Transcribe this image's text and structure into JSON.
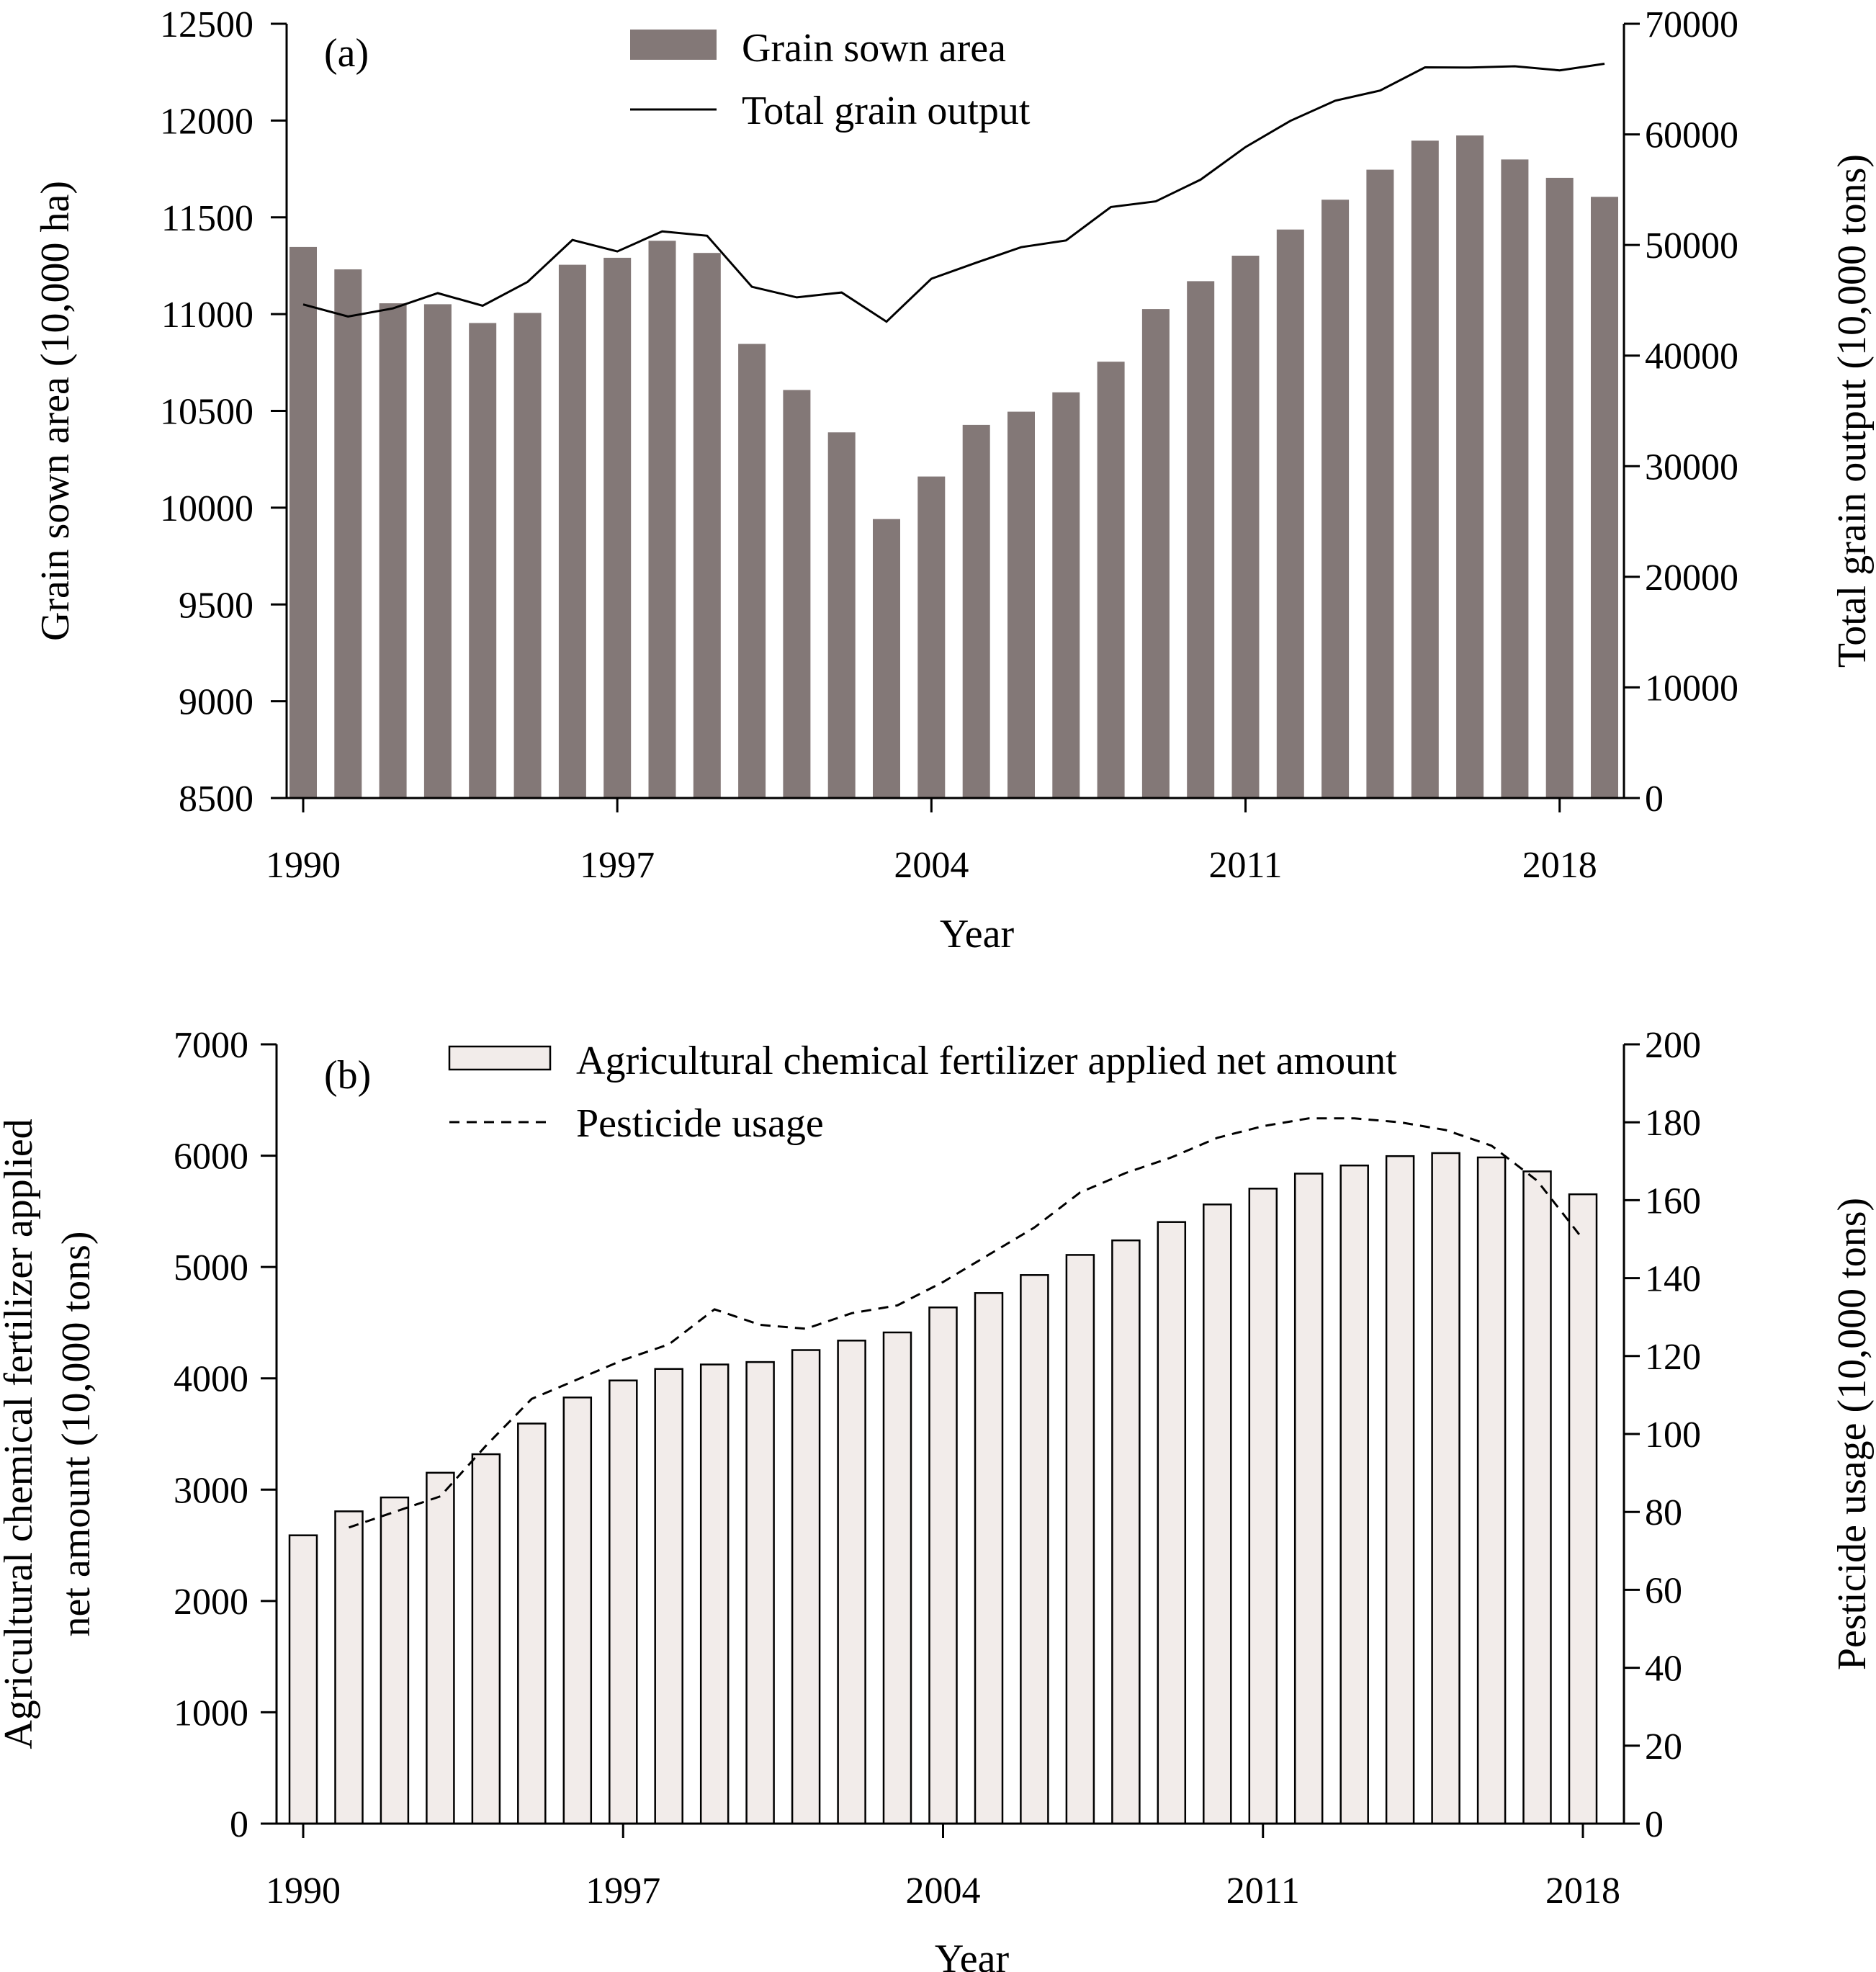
{
  "chart_data": [
    {
      "panel_label": "(a)",
      "type": "bar",
      "categories": [
        1990,
        1991,
        1992,
        1993,
        1994,
        1995,
        1996,
        1997,
        1998,
        1999,
        2000,
        2001,
        2002,
        2003,
        2004,
        2005,
        2006,
        2007,
        2008,
        2009,
        2010,
        2011,
        2012,
        2013,
        2014,
        2015,
        2016,
        2017,
        2018,
        2019
      ],
      "x_ticks": [
        "1990",
        "1997",
        "2004",
        "2011",
        "2018"
      ],
      "xlabel": "Year",
      "ylabel": "Grain sown area (10,000 ha)",
      "ylim": [
        8500,
        12500
      ],
      "y_ticks": [
        "8500",
        "9000",
        "9500",
        "10000",
        "10500",
        "11000",
        "11500",
        "12000",
        "12500"
      ],
      "y2label": "Total grain output (10,000 tons)",
      "y2lim": [
        0,
        70000
      ],
      "y2_ticks": [
        "0",
        "10000",
        "20000",
        "30000",
        "40000",
        "50000",
        "60000",
        "70000"
      ],
      "series": [
        {
          "name": "Grain sown area",
          "kind": "bar",
          "axis": "left",
          "color": "#837877",
          "values": [
            11347,
            11231,
            11056,
            11051,
            10954,
            11006,
            11255,
            11291,
            11379,
            11316,
            10846,
            10608,
            10389,
            9941,
            10161,
            10428,
            10496,
            10596,
            10754,
            11026,
            11170,
            11302,
            11437,
            11591,
            11746,
            11896,
            11923,
            11799,
            11704,
            11606
          ]
        },
        {
          "name": "Total grain output",
          "kind": "line",
          "axis": "right",
          "color": "#000000",
          "values": [
            44624,
            43529,
            44266,
            45649,
            44510,
            46662,
            50454,
            49417,
            51230,
            50839,
            46218,
            45264,
            45706,
            43070,
            46947,
            48402,
            49804,
            50414,
            53434,
            53941,
            55911,
            58849,
            61223,
            63048,
            63965,
            66060,
            66044,
            66161,
            65789,
            66384
          ]
        }
      ],
      "legend_position": "top-center"
    },
    {
      "panel_label": "(b)",
      "type": "bar",
      "categories": [
        1990,
        1991,
        1992,
        1993,
        1994,
        1995,
        1996,
        1997,
        1998,
        1999,
        2000,
        2001,
        2002,
        2003,
        2004,
        2005,
        2006,
        2007,
        2008,
        2009,
        2010,
        2011,
        2012,
        2013,
        2014,
        2015,
        2016,
        2017,
        2018
      ],
      "x_ticks": [
        "1990",
        "1997",
        "2004",
        "2011",
        "2018"
      ],
      "xlabel": "Year",
      "ylabel_lines": [
        "Agricultural chemical fertilizer applied",
        "net amount (10,000 tons)"
      ],
      "ylim": [
        0,
        7000
      ],
      "y_ticks": [
        "0",
        "1000",
        "2000",
        "3000",
        "4000",
        "5000",
        "6000",
        "7000"
      ],
      "y2label": "Pesticide usage (10,000 tons)",
      "y2lim": [
        0,
        200
      ],
      "y2_ticks": [
        "0",
        "20",
        "40",
        "60",
        "80",
        "100",
        "120",
        "140",
        "160",
        "180",
        "200"
      ],
      "series": [
        {
          "name": "Agricultural chemical fertilizer applied net amount",
          "kind": "bar",
          "axis": "left",
          "color": "#f2ecea",
          "values": [
            2590,
            2805,
            2930,
            3152,
            3318,
            3594,
            3828,
            3981,
            4084,
            4124,
            4146,
            4254,
            4339,
            4412,
            4637,
            4766,
            4928,
            5108,
            5239,
            5404,
            5562,
            5704,
            5839,
            5912,
            5996,
            6023,
            5984,
            5859,
            5653
          ]
        },
        {
          "name": "Pesticide usage",
          "kind": "line-dashed",
          "axis": "right",
          "color": "#000000",
          "values": [
            null,
            76,
            80,
            84,
            97,
            109,
            114,
            119,
            123,
            132,
            128,
            127,
            131,
            133,
            139,
            146,
            153,
            162,
            167,
            171,
            176,
            179,
            181,
            181,
            180,
            178,
            174,
            165,
            150
          ]
        }
      ],
      "legend_position": "top-center"
    }
  ]
}
